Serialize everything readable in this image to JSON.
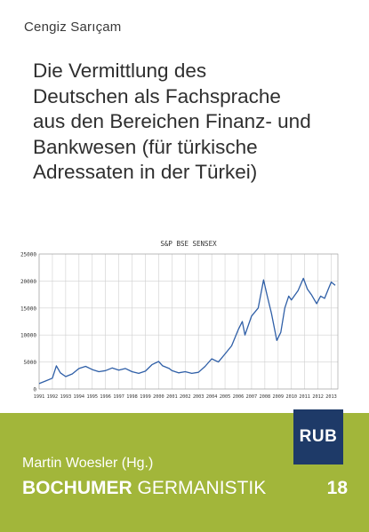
{
  "cover": {
    "author": "Cengiz Sarıçam",
    "title_lines": [
      "Die Vermittlung des",
      "Deutschen als Fachsprache",
      "aus den Bereichen Finanz- und",
      "Bankwesen (für türkische",
      "Adressaten in der Türkei)"
    ],
    "editor": "Martin Woesler (Hg.)",
    "series_name": "BOCHUMER",
    "series_sub": "GERMANISTIK",
    "series_number": "18",
    "logo_text": "RUB",
    "colors": {
      "band": "#a2b63a",
      "logo_bg": "#1e3a68",
      "line": "#2f5fa7",
      "grid": "#d0d0d0"
    }
  },
  "chart_data": {
    "type": "line",
    "title": "S&P BSE SENSEX",
    "xlabel": "",
    "ylabel": "",
    "ylim": [
      0,
      25000
    ],
    "xlim": [
      1991,
      2013.5
    ],
    "y_ticks": [
      0,
      5000,
      10000,
      15000,
      20000,
      25000
    ],
    "x_ticks": [
      1991,
      1992,
      1993,
      1994,
      1995,
      1996,
      1997,
      1998,
      1999,
      2000,
      2001,
      2002,
      2003,
      2004,
      2005,
      2006,
      2007,
      2008,
      2009,
      2010,
      2011,
      2012,
      2013
    ],
    "grid": true,
    "series": [
      {
        "name": "",
        "x": [
          1991,
          1991.5,
          1992,
          1992.3,
          1992.6,
          1993,
          1993.5,
          1994,
          1994.5,
          1995,
          1995.5,
          1996,
          1996.5,
          1997,
          1997.5,
          1998,
          1998.5,
          1999,
          1999.5,
          2000,
          2000.3,
          2000.8,
          2001,
          2001.5,
          2002,
          2002.5,
          2003,
          2003.5,
          2004,
          2004.5,
          2005,
          2005.5,
          2006,
          2006.3,
          2006.5,
          2007,
          2007.5,
          2007.9,
          2008.2,
          2008.5,
          2008.9,
          2009.2,
          2009.5,
          2009.8,
          2010,
          2010.5,
          2010.9,
          2011.2,
          2011.5,
          2011.9,
          2012.2,
          2012.5,
          2012.8,
          2013,
          2013.3
        ],
        "values": [
          1000,
          1500,
          2000,
          4300,
          3000,
          2300,
          2800,
          3800,
          4200,
          3600,
          3200,
          3400,
          3900,
          3500,
          3800,
          3200,
          2900,
          3300,
          4500,
          5100,
          4300,
          3800,
          3400,
          3000,
          3200,
          2900,
          3100,
          4200,
          5600,
          5000,
          6500,
          8000,
          11000,
          12500,
          10000,
          13500,
          15000,
          20200,
          17000,
          14000,
          9000,
          10500,
          15000,
          17200,
          16500,
          18200,
          20500,
          18500,
          17500,
          15800,
          17200,
          16800,
          18600,
          19800,
          19200
        ]
      }
    ]
  }
}
